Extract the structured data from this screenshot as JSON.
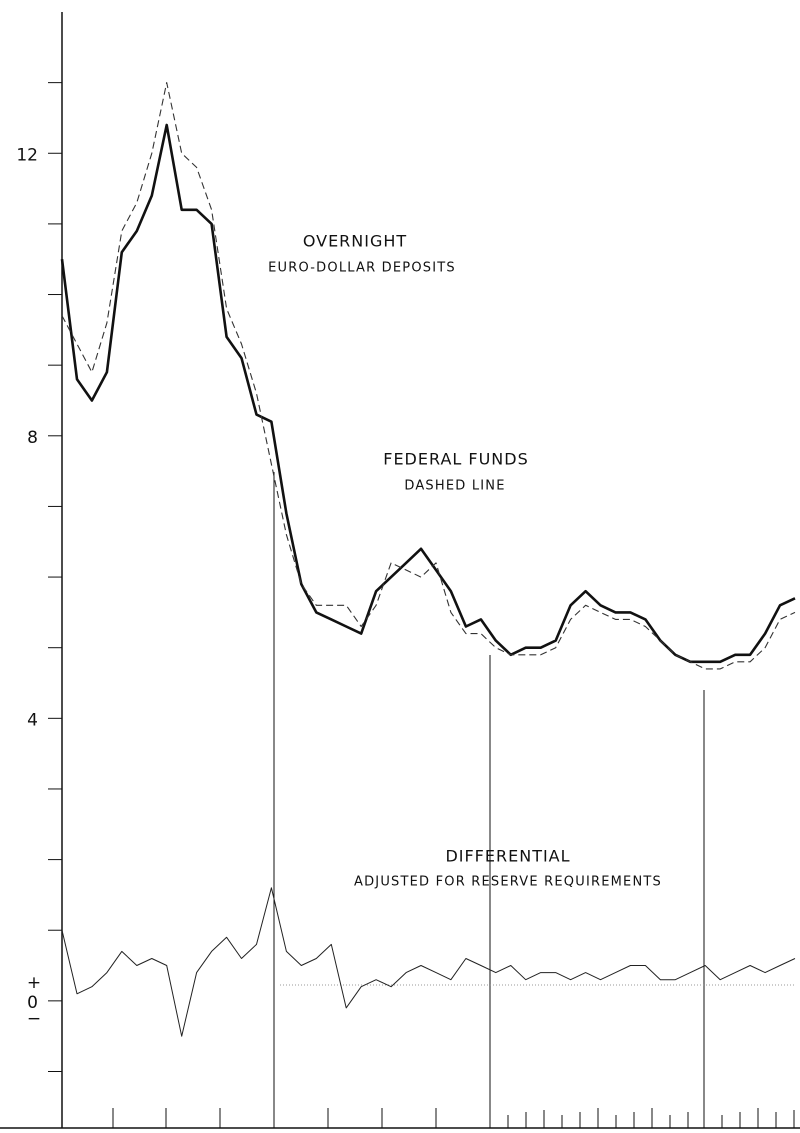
{
  "chart_data": {
    "type": "line",
    "categories": [
      null,
      null,
      null,
      null,
      null,
      null,
      null,
      null,
      null,
      null,
      null,
      null,
      null,
      null,
      null,
      null,
      null,
      null,
      null,
      null,
      null,
      null,
      null,
      null,
      null,
      null,
      null,
      null,
      null,
      null,
      null,
      null,
      null,
      null,
      null,
      null,
      null,
      null,
      null,
      null,
      null,
      null,
      null,
      null,
      null,
      null,
      null,
      null,
      null,
      null
    ],
    "series": [
      {
        "color": "#111111",
        "style": "thick",
        "values": [
          10.5,
          8.8,
          8.5,
          8.9,
          10.6,
          10.9,
          11.4,
          12.4,
          11.2,
          11.2,
          11.0,
          9.4,
          9.1,
          8.3,
          8.2,
          6.9,
          5.9,
          5.5,
          5.4,
          5.3,
          5.2,
          5.8,
          6.0,
          6.2,
          6.4,
          6.1,
          5.8,
          5.3,
          5.4,
          5.1,
          4.9,
          5.0,
          5.0,
          5.1,
          5.6,
          5.8,
          5.6,
          5.5,
          5.5,
          5.4,
          5.1,
          4.9,
          4.8,
          4.8,
          4.8,
          4.9,
          4.9,
          5.2,
          5.6,
          5.7
        ]
      },
      {
        "color": "#333333",
        "style": "dashed",
        "values": [
          9.7,
          9.3,
          8.9,
          9.6,
          10.9,
          11.3,
          12.0,
          13.0,
          12.0,
          11.8,
          11.2,
          9.8,
          9.3,
          8.6,
          7.6,
          6.6,
          5.9,
          5.6,
          5.6,
          5.6,
          5.3,
          5.6,
          6.2,
          6.1,
          6.0,
          6.2,
          5.5,
          5.2,
          5.2,
          5.0,
          4.9,
          4.9,
          4.9,
          5.0,
          5.4,
          5.6,
          5.5,
          5.4,
          5.4,
          5.3,
          5.1,
          4.9,
          4.8,
          4.7,
          4.7,
          4.8,
          4.8,
          5.0,
          5.4,
          5.5
        ]
      },
      {
        "color": "#222222",
        "style": "thin",
        "values": [
          1.0,
          0.1,
          0.2,
          0.4,
          0.7,
          0.5,
          0.6,
          0.5,
          -0.5,
          0.4,
          0.7,
          0.9,
          0.6,
          0.8,
          1.6,
          0.7,
          0.5,
          0.6,
          0.8,
          -0.1,
          0.2,
          0.3,
          0.2,
          0.4,
          0.5,
          0.4,
          0.3,
          0.6,
          0.5,
          0.4,
          0.5,
          0.3,
          0.4,
          0.4,
          0.3,
          0.4,
          0.3,
          0.4,
          0.5,
          0.5,
          0.3,
          0.3,
          0.4,
          0.5,
          0.3,
          0.4,
          0.5,
          0.4,
          0.5,
          0.6
        ]
      }
    ],
    "annotations": [
      "OVERNIGHT",
      "EURO-DOLLAR DEPOSITS",
      "FEDERAL FUNDS",
      "DASHED LINE",
      "DIFFERENTIAL",
      "ADJUSTED FOR RESERVE REQUIREMENTS"
    ],
    "y_sign_labels": [
      "+",
      "−"
    ],
    "ylim": [
      -1.8,
      14
    ],
    "yticks": [
      0,
      4,
      8,
      12
    ],
    "minor_yticks": [
      -1,
      1,
      2,
      3,
      5,
      6,
      7,
      9,
      10,
      11,
      13
    ]
  }
}
